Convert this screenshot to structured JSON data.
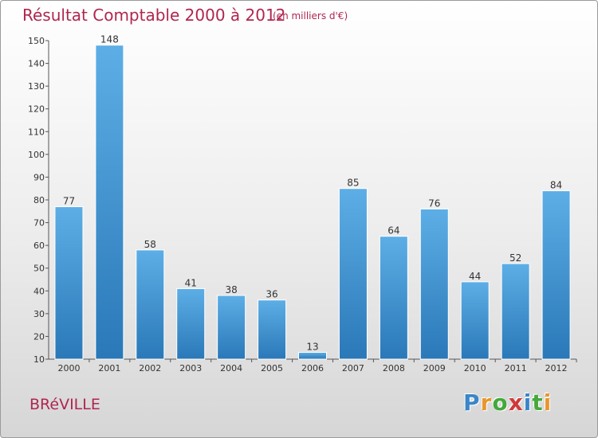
{
  "header": {
    "title": "Résultat Comptable 2000 à 2012",
    "subtitle": "(en milliers d'€)"
  },
  "footer": {
    "commune": "BRéVILLE",
    "logo_letters": [
      "P",
      "r",
      "o",
      "x",
      "i",
      "t",
      "i"
    ],
    "logo_colors": [
      "#3a86c8",
      "#e8962e",
      "#45a83c",
      "#d03a3a",
      "#3a86c8",
      "#45a83c",
      "#e8962e"
    ]
  },
  "colors": {
    "accent": "#b0264f",
    "bar_light": "#5daee6",
    "bar_dark": "#2a78b8"
  },
  "chart_data": {
    "type": "bar",
    "title": "Résultat Comptable 2000 à 2012",
    "subtitle": "(en milliers d'€)",
    "categories": [
      "2000",
      "2001",
      "2002",
      "2003",
      "2004",
      "2005",
      "2006",
      "2007",
      "2008",
      "2009",
      "2010",
      "2011",
      "2012"
    ],
    "values": [
      77,
      148,
      58,
      41,
      38,
      36,
      13,
      85,
      64,
      76,
      44,
      52,
      84
    ],
    "ylim": [
      10,
      150
    ],
    "yticks": [
      10,
      20,
      30,
      40,
      50,
      60,
      70,
      80,
      90,
      100,
      110,
      120,
      130,
      140,
      150
    ],
    "grid": false,
    "legend": "none"
  }
}
